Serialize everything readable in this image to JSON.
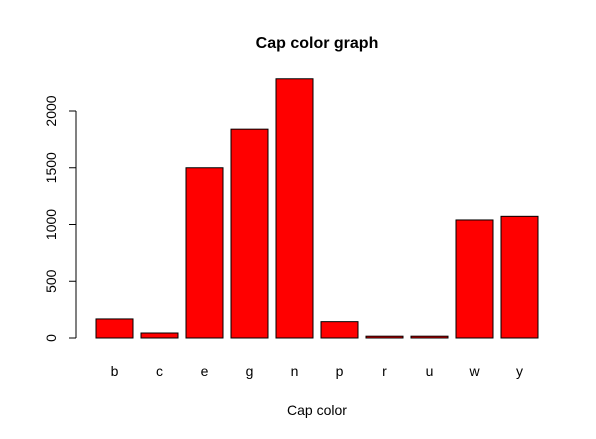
{
  "chart_data": {
    "type": "bar",
    "title": "Cap color graph",
    "xlabel": "Cap color",
    "ylabel": "",
    "categories": [
      "b",
      "c",
      "e",
      "g",
      "n",
      "p",
      "r",
      "u",
      "w",
      "y"
    ],
    "values": [
      168,
      44,
      1500,
      1840,
      2284,
      144,
      16,
      16,
      1040,
      1072
    ],
    "ylim": [
      0,
      2300
    ],
    "yticks": [
      "0",
      "500",
      "1000",
      "1500",
      "2000"
    ],
    "grid": false,
    "bar_color": "#ff0000",
    "bar_edge_color": "#000000"
  }
}
